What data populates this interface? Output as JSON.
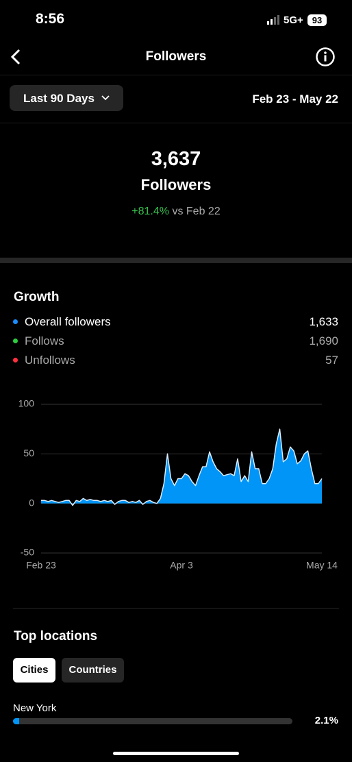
{
  "status_bar": {
    "time": "8:56",
    "network": "5G+",
    "battery": "93"
  },
  "header": {
    "title": "Followers"
  },
  "filter": {
    "range": "Last 90 Days",
    "dates": "Feb 23 - May 22"
  },
  "summary": {
    "count": "3,637",
    "label": "Followers",
    "change": "+81.4%",
    "comparison": "vs Feb 22"
  },
  "growth": {
    "title": "Growth",
    "legend": [
      {
        "name": "Overall followers",
        "value": "1,633",
        "color": "#1a8cff"
      },
      {
        "name": "Follows",
        "value": "1,690",
        "color": "#2ecc40"
      },
      {
        "name": "Unfollows",
        "value": "57",
        "color": "#ff3040"
      }
    ]
  },
  "chart_data": {
    "type": "area",
    "color": "#0095f6",
    "grid": true,
    "ylim": [
      -50,
      100
    ],
    "yticks": [
      -50,
      0,
      50,
      100
    ],
    "categories": [
      "Feb 23",
      null,
      null,
      null,
      null,
      null,
      null,
      null,
      null,
      null,
      null,
      null,
      null,
      null,
      null,
      null,
      null,
      null,
      null,
      null,
      null,
      null,
      null,
      null,
      null,
      null,
      null,
      null,
      null,
      null,
      null,
      null,
      null,
      null,
      null,
      null,
      null,
      null,
      null,
      null,
      "Apr 3",
      null,
      null,
      null,
      null,
      null,
      null,
      null,
      null,
      null,
      null,
      null,
      null,
      null,
      null,
      null,
      null,
      null,
      null,
      null,
      null,
      null,
      null,
      null,
      null,
      null,
      null,
      null,
      null,
      null,
      null,
      null,
      null,
      null,
      null,
      null,
      null,
      null,
      null,
      null,
      "May 14"
    ],
    "values": [
      3,
      3,
      2,
      3,
      2,
      1,
      2,
      3,
      3,
      -2,
      3,
      2,
      5,
      3,
      4,
      3,
      3,
      2,
      3,
      2,
      3,
      -1,
      2,
      3,
      3,
      1,
      2,
      1,
      3,
      -1,
      2,
      3,
      1,
      0,
      5,
      20,
      50,
      25,
      18,
      25,
      25,
      30,
      28,
      22,
      18,
      28,
      37,
      37,
      52,
      42,
      35,
      32,
      28,
      29,
      30,
      28,
      45,
      22,
      28,
      22,
      52,
      35,
      35,
      20,
      20,
      25,
      35,
      60,
      75,
      42,
      45,
      57,
      53,
      40,
      43,
      50,
      53,
      35,
      20,
      20,
      25
    ]
  },
  "locations": {
    "title": "Top locations",
    "tabs": [
      "Cities",
      "Countries"
    ],
    "rows": [
      {
        "name": "New York",
        "value": 2.1,
        "value_label": "2.1%"
      }
    ]
  }
}
